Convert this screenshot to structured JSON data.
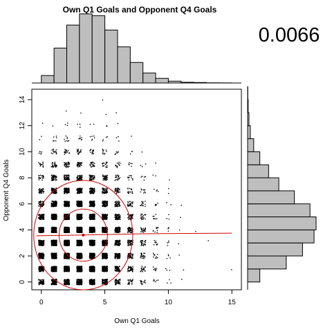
{
  "chart_data": {
    "type": "scatter",
    "title": "Own Q1 Goals and Opponent Q4 Goals",
    "xlabel": "Own Q1 Goals",
    "ylabel": "Opponent Q4 Goals",
    "xlim": [
      -0.75,
      15.75
    ],
    "ylim": [
      -0.6,
      14.8
    ],
    "x_ticks": [
      0,
      5,
      10,
      15
    ],
    "y_ticks": [
      0,
      2,
      4,
      6,
      8,
      10,
      12,
      14
    ],
    "grid": false,
    "statistic": "0.0066",
    "point_counts": [
      [
        60,
        110,
        150,
        140,
        120,
        90,
        50,
        30,
        14,
        6,
        3,
        1,
        0,
        0,
        0,
        0
      ],
      [
        90,
        170,
        230,
        220,
        180,
        130,
        80,
        40,
        20,
        8,
        3,
        1,
        0,
        0,
        0,
        1
      ],
      [
        110,
        210,
        280,
        270,
        220,
        160,
        100,
        50,
        24,
        10,
        4,
        1,
        0,
        0,
        0,
        0
      ],
      [
        120,
        230,
        300,
        290,
        240,
        170,
        110,
        55,
        26,
        10,
        4,
        1,
        0,
        1,
        0,
        0
      ],
      [
        110,
        210,
        280,
        270,
        220,
        160,
        100,
        50,
        24,
        10,
        4,
        1,
        1,
        0,
        0,
        0
      ],
      [
        90,
        170,
        230,
        220,
        180,
        130,
        80,
        40,
        20,
        8,
        3,
        1,
        0,
        0,
        0,
        0
      ],
      [
        60,
        120,
        160,
        150,
        125,
        90,
        55,
        28,
        14,
        5,
        2,
        1,
        0,
        0,
        0,
        0
      ],
      [
        40,
        80,
        105,
        100,
        85,
        60,
        36,
        18,
        9,
        4,
        2,
        0,
        0,
        0,
        0,
        0
      ],
      [
        24,
        48,
        65,
        60,
        50,
        36,
        22,
        11,
        5,
        2,
        1,
        0,
        0,
        0,
        0,
        0
      ],
      [
        14,
        28,
        36,
        34,
        28,
        20,
        12,
        6,
        3,
        1,
        0,
        0,
        0,
        0,
        0,
        0
      ],
      [
        6,
        14,
        18,
        17,
        14,
        10,
        6,
        3,
        1,
        0,
        0,
        0,
        0,
        0,
        0,
        0
      ],
      [
        2,
        6,
        8,
        8,
        6,
        4,
        3,
        1,
        0,
        0,
        0,
        0,
        0,
        0,
        0,
        0
      ],
      [
        1,
        1,
        3,
        3,
        2,
        2,
        1,
        0,
        0,
        0,
        0,
        0,
        0,
        0,
        0,
        0
      ],
      [
        0,
        0,
        1,
        1,
        0,
        1,
        1,
        0,
        0,
        0,
        0,
        0,
        0,
        0,
        0,
        0
      ],
      [
        0,
        0,
        0,
        0,
        0,
        1,
        0,
        0,
        0,
        0,
        0,
        0,
        0,
        0,
        0,
        0
      ]
    ],
    "x_histogram": {
      "breaks": [
        0,
        1,
        2,
        3,
        4,
        5,
        6,
        7,
        8,
        9,
        10,
        11,
        12,
        13,
        14,
        15
      ],
      "counts": [
        120,
        560,
        930,
        1110,
        1080,
        850,
        580,
        330,
        160,
        75,
        30,
        12,
        8,
        3,
        2
      ]
    },
    "y_histogram": {
      "breaks": [
        0,
        1,
        2,
        3,
        4,
        5,
        6,
        7,
        8,
        9,
        10,
        11,
        12,
        13,
        14,
        15
      ],
      "counts": [
        180,
        570,
        810,
        980,
        1010,
        920,
        690,
        460,
        310,
        180,
        90,
        40,
        20,
        8,
        3
      ]
    },
    "mean_point": {
      "x": 3.3,
      "y": 3.6
    },
    "ellipse_radii": [
      {
        "x": 1.9,
        "y": 2.0
      },
      {
        "x": 3.9,
        "y": 4.2
      }
    ],
    "fit_line": [
      {
        "x": -0.4,
        "y": 3.55
      },
      {
        "x": 3.0,
        "y": 3.6
      },
      {
        "x": 8.0,
        "y": 3.7
      },
      {
        "x": 15.0,
        "y": 3.75
      }
    ],
    "colors": {
      "points": "#000000",
      "histogram_fill": "#bebebe",
      "histogram_border": "#000000",
      "overlay": "#cc0000"
    }
  }
}
